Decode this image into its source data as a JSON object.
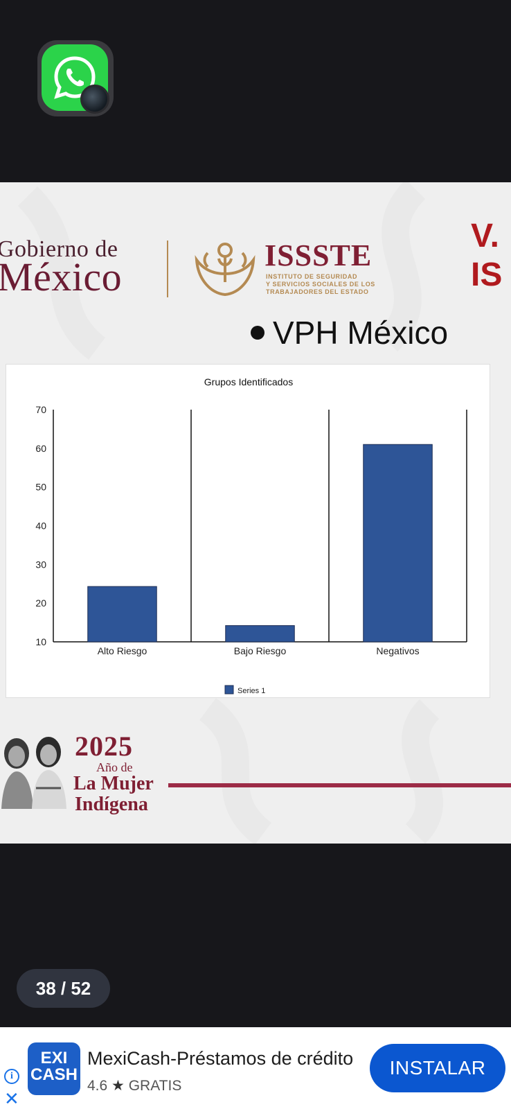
{
  "app": {
    "icon": "whatsapp-icon"
  },
  "slide": {
    "header": {
      "gobierno_line1": "Gobierno de",
      "gobierno_line2": "México",
      "issste_title": "ISSSTE",
      "issste_sub1": "INSTITUTO DE SEGURIDAD",
      "issste_sub2": "Y SERVICIOS SOCIALES DE LOS",
      "issste_sub3": "TRABAJADORES DEL ESTADO",
      "corner_line1": "V.",
      "corner_line2": "IS"
    },
    "bullet_title": "VPH México",
    "footer": {
      "year": "2025",
      "line1": "Año de",
      "line2": "La Mujer",
      "line3": "Indígena"
    }
  },
  "chart_data": {
    "type": "bar",
    "title": "Grupos Identificados",
    "categories": [
      "Alto Riesgo",
      "Bajo Riesgo",
      "Negativos"
    ],
    "series": [
      {
        "name": "Series 1",
        "values": [
          24.3,
          14.2,
          61
        ],
        "color": "#2e5597"
      }
    ],
    "yticks": [
      "70",
      "60",
      "50",
      "40",
      "30",
      "20",
      "10"
    ],
    "ylim": [
      10,
      70
    ],
    "xlabel": "",
    "ylabel": "",
    "legend": "bottom"
  },
  "pager": {
    "label": "38 / 52"
  },
  "ad": {
    "logo_top": "EXI",
    "logo_bottom": "CASH",
    "title": "MexiCash-Préstamos de crédito",
    "rating": "4.6",
    "star": "★",
    "price": "GRATIS",
    "button": "INSTALAR",
    "accent": "#0b57d0"
  }
}
